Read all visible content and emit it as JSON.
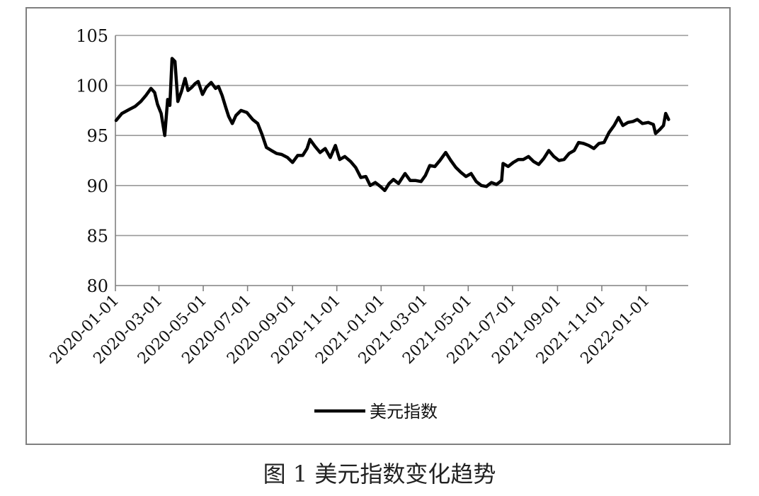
{
  "caption": "图 1 美元指数变化趋势",
  "chart_data": {
    "type": "line",
    "title": "",
    "xlabel": "",
    "ylabel": "",
    "ylim": [
      80,
      105
    ],
    "yticks": [
      80,
      85,
      90,
      95,
      100,
      105
    ],
    "xlim": [
      "2020-01-01",
      "2022-02-28"
    ],
    "xticks": [
      "2020-01-01",
      "2020-03-01",
      "2020-05-01",
      "2020-07-01",
      "2020-09-01",
      "2020-11-01",
      "2021-01-01",
      "2021-03-01",
      "2021-05-01",
      "2021-07-01",
      "2021-09-01",
      "2021-11-01",
      "2022-01-01"
    ],
    "grid": "horizontal",
    "legend_position": "bottom",
    "colors": {
      "line": "#000000",
      "grid": "#999999",
      "axis": "#808080",
      "frame": "#7f7f7f"
    },
    "series": [
      {
        "name": "美元指数",
        "points": [
          [
            "2020-01-02",
            96.5
          ],
          [
            "2020-01-10",
            97.2
          ],
          [
            "2020-01-20",
            97.6
          ],
          [
            "2020-01-28",
            97.9
          ],
          [
            "2020-02-05",
            98.4
          ],
          [
            "2020-02-12",
            99.0
          ],
          [
            "2020-02-19",
            99.7
          ],
          [
            "2020-02-24",
            99.3
          ],
          [
            "2020-02-28",
            98.1
          ],
          [
            "2020-03-04",
            97.2
          ],
          [
            "2020-03-09",
            95.0
          ],
          [
            "2020-03-13",
            98.6
          ],
          [
            "2020-03-16",
            98.0
          ],
          [
            "2020-03-19",
            102.7
          ],
          [
            "2020-03-23",
            102.4
          ],
          [
            "2020-03-27",
            98.4
          ],
          [
            "2020-04-01",
            99.4
          ],
          [
            "2020-04-06",
            100.7
          ],
          [
            "2020-04-10",
            99.5
          ],
          [
            "2020-04-15",
            99.8
          ],
          [
            "2020-04-20",
            100.2
          ],
          [
            "2020-04-24",
            100.4
          ],
          [
            "2020-04-30",
            99.1
          ],
          [
            "2020-05-05",
            99.8
          ],
          [
            "2020-05-12",
            100.3
          ],
          [
            "2020-05-18",
            99.7
          ],
          [
            "2020-05-22",
            99.9
          ],
          [
            "2020-05-27",
            99.0
          ],
          [
            "2020-06-01",
            97.8
          ],
          [
            "2020-06-05",
            96.9
          ],
          [
            "2020-06-10",
            96.2
          ],
          [
            "2020-06-15",
            97.0
          ],
          [
            "2020-06-22",
            97.5
          ],
          [
            "2020-06-30",
            97.3
          ],
          [
            "2020-07-08",
            96.6
          ],
          [
            "2020-07-15",
            96.2
          ],
          [
            "2020-07-21",
            95.1
          ],
          [
            "2020-07-27",
            93.8
          ],
          [
            "2020-08-03",
            93.5
          ],
          [
            "2020-08-10",
            93.2
          ],
          [
            "2020-08-17",
            93.1
          ],
          [
            "2020-08-25",
            92.8
          ],
          [
            "2020-09-01",
            92.3
          ],
          [
            "2020-09-08",
            93.0
          ],
          [
            "2020-09-15",
            93.0
          ],
          [
            "2020-09-21",
            93.7
          ],
          [
            "2020-09-25",
            94.6
          ],
          [
            "2020-10-02",
            93.9
          ],
          [
            "2020-10-09",
            93.3
          ],
          [
            "2020-10-16",
            93.7
          ],
          [
            "2020-10-23",
            92.8
          ],
          [
            "2020-10-30",
            94.0
          ],
          [
            "2020-11-05",
            92.6
          ],
          [
            "2020-11-12",
            92.9
          ],
          [
            "2020-11-20",
            92.4
          ],
          [
            "2020-11-27",
            91.8
          ],
          [
            "2020-12-04",
            90.8
          ],
          [
            "2020-12-11",
            90.9
          ],
          [
            "2020-12-17",
            90.0
          ],
          [
            "2020-12-24",
            90.3
          ],
          [
            "2020-12-31",
            89.9
          ],
          [
            "2021-01-06",
            89.5
          ],
          [
            "2021-01-12",
            90.2
          ],
          [
            "2021-01-18",
            90.6
          ],
          [
            "2021-01-25",
            90.2
          ],
          [
            "2021-02-03",
            91.2
          ],
          [
            "2021-02-10",
            90.5
          ],
          [
            "2021-02-17",
            90.5
          ],
          [
            "2021-02-25",
            90.4
          ],
          [
            "2021-03-03",
            91.0
          ],
          [
            "2021-03-09",
            92.0
          ],
          [
            "2021-03-16",
            91.9
          ],
          [
            "2021-03-23",
            92.5
          ],
          [
            "2021-03-31",
            93.3
          ],
          [
            "2021-04-07",
            92.5
          ],
          [
            "2021-04-14",
            91.8
          ],
          [
            "2021-04-21",
            91.3
          ],
          [
            "2021-04-28",
            90.9
          ],
          [
            "2021-05-05",
            91.2
          ],
          [
            "2021-05-12",
            90.4
          ],
          [
            "2021-05-19",
            90.0
          ],
          [
            "2021-05-26",
            89.9
          ],
          [
            "2021-06-02",
            90.3
          ],
          [
            "2021-06-09",
            90.1
          ],
          [
            "2021-06-16",
            90.5
          ],
          [
            "2021-06-18",
            92.2
          ],
          [
            "2021-06-25",
            91.9
          ],
          [
            "2021-07-02",
            92.3
          ],
          [
            "2021-07-09",
            92.6
          ],
          [
            "2021-07-16",
            92.6
          ],
          [
            "2021-07-23",
            92.9
          ],
          [
            "2021-07-30",
            92.4
          ],
          [
            "2021-08-06",
            92.1
          ],
          [
            "2021-08-13",
            92.7
          ],
          [
            "2021-08-20",
            93.5
          ],
          [
            "2021-08-27",
            92.9
          ],
          [
            "2021-09-03",
            92.5
          ],
          [
            "2021-09-10",
            92.6
          ],
          [
            "2021-09-17",
            93.2
          ],
          [
            "2021-09-24",
            93.5
          ],
          [
            "2021-09-30",
            94.3
          ],
          [
            "2021-10-07",
            94.2
          ],
          [
            "2021-10-14",
            94.0
          ],
          [
            "2021-10-21",
            93.7
          ],
          [
            "2021-10-28",
            94.2
          ],
          [
            "2021-11-04",
            94.3
          ],
          [
            "2021-11-11",
            95.3
          ],
          [
            "2021-11-18",
            96.0
          ],
          [
            "2021-11-24",
            96.8
          ],
          [
            "2021-11-30",
            96.0
          ],
          [
            "2021-12-07",
            96.3
          ],
          [
            "2021-12-14",
            96.4
          ],
          [
            "2021-12-20",
            96.6
          ],
          [
            "2021-12-27",
            96.2
          ],
          [
            "2022-01-04",
            96.3
          ],
          [
            "2022-01-11",
            96.1
          ],
          [
            "2022-01-14",
            95.2
          ],
          [
            "2022-01-20",
            95.6
          ],
          [
            "2022-01-25",
            96.0
          ],
          [
            "2022-01-28",
            97.2
          ],
          [
            "2022-02-01",
            96.6
          ]
        ]
      }
    ]
  }
}
